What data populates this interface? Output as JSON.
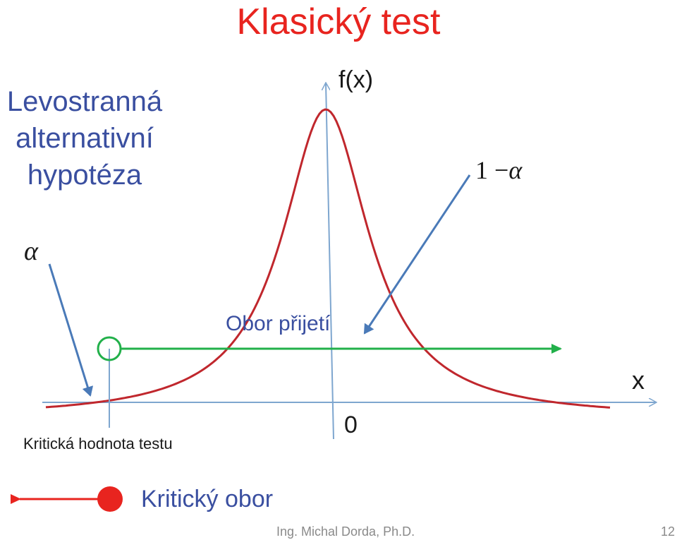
{
  "title": "Klasický test",
  "subtitle_lines": [
    "Levostranná",
    "alternativní",
    "hypotéza"
  ],
  "axes": {
    "y_label": "f(x)",
    "x_label": "x",
    "origin_label": "0"
  },
  "labels": {
    "alpha": "α",
    "one_minus_alpha_prefix": "1 −",
    "one_minus_alpha_symbol": "α",
    "acceptance_region": "Obor přijetí",
    "critical_value": "Kritická hodnota testu",
    "critical_region": "Kritický obor"
  },
  "footer": {
    "author": "Ing. Michal Dorda, Ph.D.",
    "page": "12"
  },
  "colors": {
    "curve": "#c0272d",
    "axes": "#7ea6cf",
    "arrows": "#4a7ab8",
    "acceptance": "#22b04a",
    "critical": "#e8241f",
    "critical_value_marker": "#22b04a"
  }
}
